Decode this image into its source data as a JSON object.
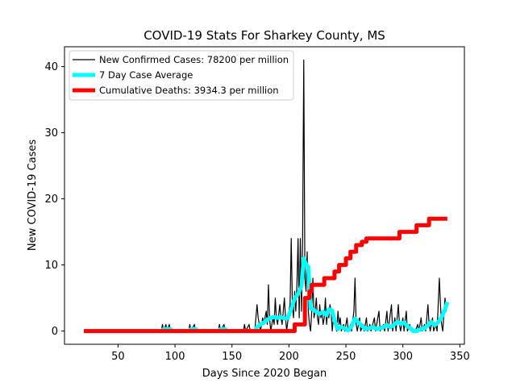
{
  "chart_data": {
    "type": "line",
    "title": "COVID-19 Stats For Sharkey County, MS",
    "xlabel": "Days Since 2020 Began",
    "ylabel": "New COVID-19 Cases",
    "xlim": [
      3,
      354
    ],
    "ylim": [
      -2,
      43
    ],
    "xticks": [
      50,
      100,
      150,
      200,
      250,
      300,
      350
    ],
    "yticks": [
      0,
      10,
      20,
      30,
      40
    ],
    "grid": false,
    "legend_position": "top-left",
    "series": [
      {
        "name": "New Confirmed Cases: 78200 per million",
        "color": "#000000",
        "line_width": 1.2,
        "points": [
          [
            20,
            0
          ],
          [
            88,
            0
          ],
          [
            89,
            1
          ],
          [
            90,
            0
          ],
          [
            92,
            1
          ],
          [
            93,
            0
          ],
          [
            95,
            1
          ],
          [
            96,
            0
          ],
          [
            112,
            0
          ],
          [
            113,
            1
          ],
          [
            114,
            0
          ],
          [
            117,
            1
          ],
          [
            118,
            0
          ],
          [
            138,
            0
          ],
          [
            139,
            1
          ],
          [
            140,
            0
          ],
          [
            143,
            1
          ],
          [
            144,
            0
          ],
          [
            160,
            0
          ],
          [
            161,
            1
          ],
          [
            162,
            0
          ],
          [
            165,
            1
          ],
          [
            166,
            0
          ],
          [
            170,
            0
          ],
          [
            172,
            4
          ],
          [
            173,
            2
          ],
          [
            175,
            0
          ],
          [
            177,
            2
          ],
          [
            178,
            1
          ],
          [
            180,
            3
          ],
          [
            181,
            1
          ],
          [
            182,
            7
          ],
          [
            183,
            2
          ],
          [
            184,
            0
          ],
          [
            186,
            2
          ],
          [
            187,
            1
          ],
          [
            188,
            5
          ],
          [
            189,
            2
          ],
          [
            190,
            1
          ],
          [
            192,
            4
          ],
          [
            193,
            2
          ],
          [
            194,
            1
          ],
          [
            196,
            5
          ],
          [
            197,
            2
          ],
          [
            198,
            0
          ],
          [
            200,
            3
          ],
          [
            201,
            4
          ],
          [
            202,
            14
          ],
          [
            203,
            4
          ],
          [
            204,
            2
          ],
          [
            205,
            6
          ],
          [
            206,
            3
          ],
          [
            207,
            7
          ],
          [
            208,
            14
          ],
          [
            209,
            2
          ],
          [
            210,
            14
          ],
          [
            211,
            3
          ],
          [
            212,
            14
          ],
          [
            213,
            41
          ],
          [
            214,
            8
          ],
          [
            215,
            6
          ],
          [
            216,
            12
          ],
          [
            217,
            3
          ],
          [
            218,
            1
          ],
          [
            219,
            0
          ],
          [
            220,
            3
          ],
          [
            221,
            8
          ],
          [
            222,
            2
          ],
          [
            223,
            3
          ],
          [
            224,
            5
          ],
          [
            225,
            2
          ],
          [
            226,
            1
          ],
          [
            227,
            4
          ],
          [
            228,
            2
          ],
          [
            229,
            3
          ],
          [
            230,
            1
          ],
          [
            231,
            2
          ],
          [
            232,
            5
          ],
          [
            233,
            1
          ],
          [
            234,
            3
          ],
          [
            235,
            2
          ],
          [
            236,
            4
          ],
          [
            237,
            3
          ],
          [
            238,
            0
          ],
          [
            239,
            2
          ],
          [
            240,
            1
          ],
          [
            242,
            0
          ],
          [
            243,
            3
          ],
          [
            244,
            1
          ],
          [
            245,
            2
          ],
          [
            246,
            0
          ],
          [
            248,
            1
          ],
          [
            249,
            0
          ],
          [
            251,
            2
          ],
          [
            252,
            0
          ],
          [
            254,
            1
          ],
          [
            255,
            0
          ],
          [
            257,
            3
          ],
          [
            258,
            8
          ],
          [
            259,
            1
          ],
          [
            260,
            0
          ],
          [
            262,
            2
          ],
          [
            263,
            0
          ],
          [
            265,
            1
          ],
          [
            266,
            0
          ],
          [
            268,
            2
          ],
          [
            269,
            0
          ],
          [
            271,
            1
          ],
          [
            272,
            0
          ],
          [
            275,
            2
          ],
          [
            276,
            0
          ],
          [
            279,
            3
          ],
          [
            280,
            0
          ],
          [
            283,
            1
          ],
          [
            284,
            0
          ],
          [
            286,
            3
          ],
          [
            287,
            0
          ],
          [
            290,
            4
          ],
          [
            291,
            0
          ],
          [
            293,
            2
          ],
          [
            294,
            0
          ],
          [
            296,
            4
          ],
          [
            297,
            1
          ],
          [
            298,
            0
          ],
          [
            300,
            2
          ],
          [
            301,
            0
          ],
          [
            303,
            3
          ],
          [
            304,
            0
          ],
          [
            306,
            1
          ],
          [
            307,
            0
          ],
          [
            311,
            0
          ],
          [
            313,
            1
          ],
          [
            314,
            0
          ],
          [
            316,
            2
          ],
          [
            317,
            0
          ],
          [
            319,
            1
          ],
          [
            320,
            0
          ],
          [
            322,
            4
          ],
          [
            323,
            1
          ],
          [
            324,
            0
          ],
          [
            326,
            2
          ],
          [
            327,
            0
          ],
          [
            329,
            1
          ],
          [
            330,
            0
          ],
          [
            332,
            8
          ],
          [
            333,
            4
          ],
          [
            334,
            1
          ],
          [
            335,
            0
          ],
          [
            337,
            5
          ],
          [
            338,
            3
          ],
          [
            339,
            4
          ]
        ]
      },
      {
        "name": "7 Day Case Average",
        "color": "#00ffff",
        "line_width": 5,
        "points": [
          [
            20,
            0
          ],
          [
            88,
            0
          ],
          [
            90,
            0.3
          ],
          [
            96,
            0.3
          ],
          [
            98,
            0
          ],
          [
            112,
            0
          ],
          [
            114,
            0.3
          ],
          [
            118,
            0.3
          ],
          [
            120,
            0
          ],
          [
            138,
            0
          ],
          [
            140,
            0.3
          ],
          [
            144,
            0.3
          ],
          [
            146,
            0
          ],
          [
            170,
            0
          ],
          [
            172,
            0.6
          ],
          [
            175,
            1
          ],
          [
            178,
            1.3
          ],
          [
            181,
            1.7
          ],
          [
            184,
            2
          ],
          [
            187,
            2.1
          ],
          [
            190,
            2
          ],
          [
            193,
            2.1
          ],
          [
            196,
            1.9
          ],
          [
            199,
            2
          ],
          [
            202,
            3.3
          ],
          [
            205,
            4.9
          ],
          [
            208,
            5.6
          ],
          [
            211,
            6.8
          ],
          [
            213,
            11
          ],
          [
            215,
            10.1
          ],
          [
            217,
            9.7
          ],
          [
            219,
            3.4
          ],
          [
            221,
            3.3
          ],
          [
            224,
            2.9
          ],
          [
            227,
            2.6
          ],
          [
            230,
            2.9
          ],
          [
            233,
            2.4
          ],
          [
            235,
            3.3
          ],
          [
            238,
            3.1
          ],
          [
            240,
            1.6
          ],
          [
            243,
            0.3
          ],
          [
            246,
            0.6
          ],
          [
            249,
            0.4
          ],
          [
            252,
            0.1
          ],
          [
            255,
            0.7
          ],
          [
            258,
            1.9
          ],
          [
            261,
            1.3
          ],
          [
            264,
            0.8
          ],
          [
            267,
            0.3
          ],
          [
            270,
            0.4
          ],
          [
            274,
            0.6
          ],
          [
            277,
            0.3
          ],
          [
            280,
            0.4
          ],
          [
            283,
            0.6
          ],
          [
            286,
            0.9
          ],
          [
            289,
            0.6
          ],
          [
            292,
            0.9
          ],
          [
            295,
            1.4
          ],
          [
            298,
            1.1
          ],
          [
            301,
            1.3
          ],
          [
            304,
            0.7
          ],
          [
            307,
            0.4
          ],
          [
            309,
            0
          ],
          [
            312,
            0
          ],
          [
            316,
            0.3
          ],
          [
            319,
            0.4
          ],
          [
            322,
            0.9
          ],
          [
            325,
            1.4
          ],
          [
            328,
            0.9
          ],
          [
            331,
            1.3
          ],
          [
            334,
            2.1
          ],
          [
            337,
            3.3
          ],
          [
            339,
            4.4
          ]
        ]
      },
      {
        "name": "Cumulative Deaths: 3934.3 per million",
        "color": "#ff0000",
        "line_width": 5,
        "points": [
          [
            20,
            0
          ],
          [
            205,
            0
          ],
          [
            205,
            1
          ],
          [
            214,
            1
          ],
          [
            214,
            5
          ],
          [
            218,
            5
          ],
          [
            218,
            6
          ],
          [
            220,
            6
          ],
          [
            220,
            7
          ],
          [
            231,
            7
          ],
          [
            231,
            8
          ],
          [
            240,
            8
          ],
          [
            240,
            9
          ],
          [
            244,
            9
          ],
          [
            244,
            10
          ],
          [
            250,
            10
          ],
          [
            250,
            11
          ],
          [
            254,
            11
          ],
          [
            254,
            12
          ],
          [
            259,
            12
          ],
          [
            259,
            13
          ],
          [
            264,
            13
          ],
          [
            264,
            13.5
          ],
          [
            268,
            13.5
          ],
          [
            268,
            14
          ],
          [
            297,
            14
          ],
          [
            297,
            15
          ],
          [
            312,
            15
          ],
          [
            312,
            16
          ],
          [
            323,
            16
          ],
          [
            323,
            17
          ],
          [
            339,
            17
          ]
        ]
      }
    ]
  }
}
